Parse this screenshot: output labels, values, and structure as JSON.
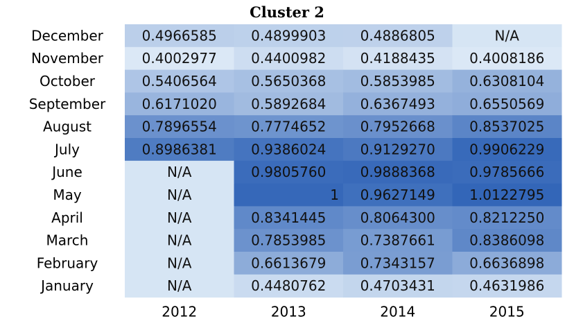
{
  "chart_data": {
    "type": "heatmap",
    "title": "Cluster 2",
    "columns": [
      "2012",
      "2013",
      "2014",
      "2015"
    ],
    "rows": [
      "December",
      "November",
      "October",
      "September",
      "August",
      "July",
      "June",
      "May",
      "April",
      "March",
      "February",
      "January"
    ],
    "cells": [
      [
        "0.4966585",
        "0.4899903",
        "0.4886805",
        "N/A"
      ],
      [
        "0.4002977",
        "0.4400982",
        "0.4188435",
        "0.4008186"
      ],
      [
        "0.5406564",
        "0.5650368",
        "0.5853985",
        "0.6308104"
      ],
      [
        "0.6171020",
        "0.5892684",
        "0.6367493",
        "0.6550569"
      ],
      [
        "0.7896554",
        "0.7774652",
        "0.7952668",
        "0.8537025"
      ],
      [
        "0.8986381",
        "0.9386024",
        "0.9129270",
        "0.9906229"
      ],
      [
        "N/A",
        "0.9805760",
        "0.9888368",
        "0.9785666"
      ],
      [
        "N/A",
        "1",
        "0.9627149",
        "1.0122795"
      ],
      [
        "N/A",
        "0.8341445",
        "0.8064300",
        "0.8212250"
      ],
      [
        "N/A",
        "0.7853985",
        "0.7387661",
        "0.8386098"
      ],
      [
        "N/A",
        "0.6613679",
        "0.7343157",
        "0.6636898"
      ],
      [
        "N/A",
        "0.4480762",
        "0.4703431",
        "0.4631986"
      ]
    ],
    "color_scale": {
      "low": "#dbe8f6",
      "high": "#3366b8",
      "na": "#d6e5f4"
    }
  }
}
